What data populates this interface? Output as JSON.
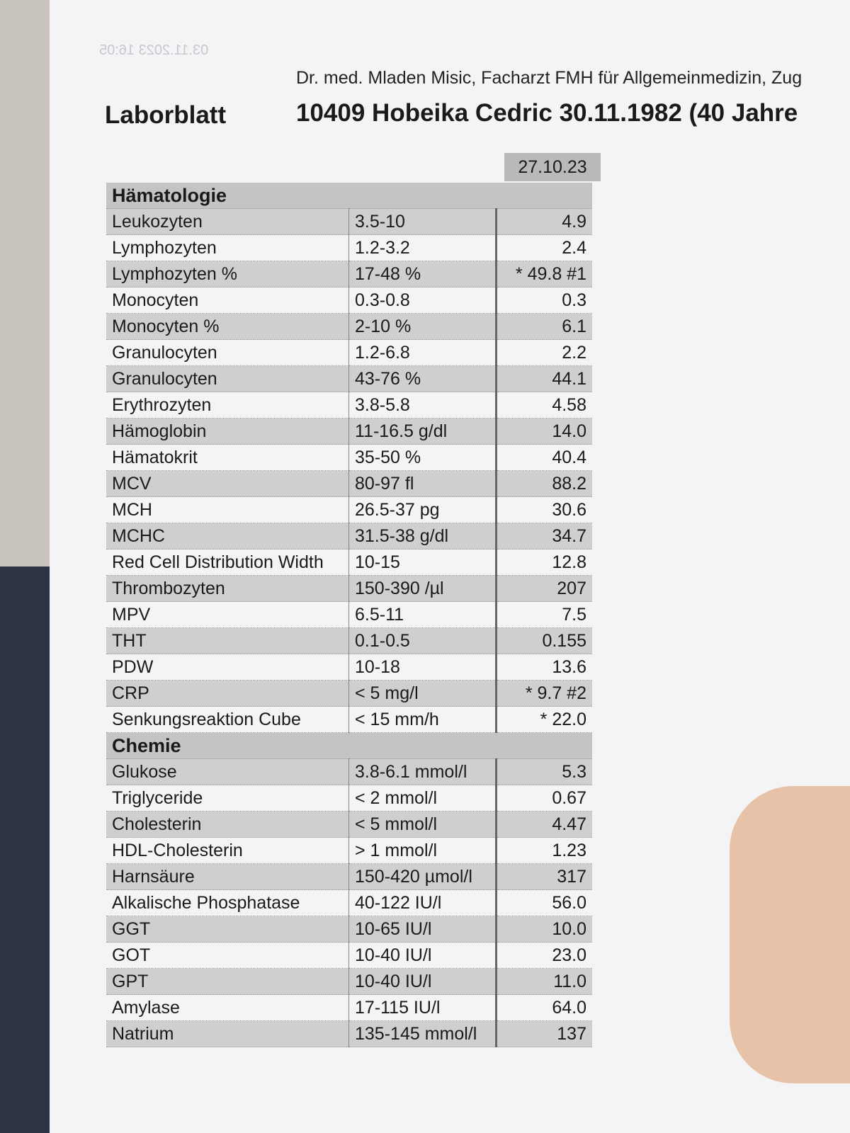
{
  "header": {
    "timestamp": "03.11.2023 16:05",
    "doctor": "Dr. med. Mladen Misic, Facharzt FMH für Allgemeinmedizin, Zug",
    "title": "Laborblatt",
    "patient": "10409 Hobeika Cedric 30.11.1982 (40 Jahre"
  },
  "table": {
    "date": "27.10.23",
    "sections": [
      {
        "title": "Hämatologie",
        "rows": [
          [
            "Leukozyten",
            "3.5-10",
            "4.9"
          ],
          [
            "Lymphozyten",
            "1.2-3.2",
            "2.4"
          ],
          [
            "Lymphozyten %",
            "17-48 %",
            "* 49.8 #1"
          ],
          [
            "Monocyten",
            "0.3-0.8",
            "0.3"
          ],
          [
            "Monocyten %",
            "2-10 %",
            "6.1"
          ],
          [
            "Granulocyten",
            "1.2-6.8",
            "2.2"
          ],
          [
            "Granulocyten",
            "43-76 %",
            "44.1"
          ],
          [
            "Erythrozyten",
            "3.8-5.8",
            "4.58"
          ],
          [
            "Hämoglobin",
            "11-16.5 g/dl",
            "14.0"
          ],
          [
            "Hämatokrit",
            "35-50 %",
            "40.4"
          ],
          [
            "MCV",
            "80-97 fl",
            "88.2"
          ],
          [
            "MCH",
            "26.5-37 pg",
            "30.6"
          ],
          [
            "MCHC",
            "31.5-38 g/dl",
            "34.7"
          ],
          [
            "Red Cell Distribution Width",
            "10-15",
            "12.8"
          ],
          [
            "Thrombozyten",
            "150-390 /µl",
            "207"
          ],
          [
            "MPV",
            "6.5-11",
            "7.5"
          ],
          [
            "THT",
            "0.1-0.5",
            "0.155"
          ],
          [
            "PDW",
            "10-18",
            "13.6"
          ],
          [
            "CRP",
            "< 5 mg/l",
            "* 9.7 #2"
          ],
          [
            "Senkungsreaktion Cube",
            "< 15 mm/h",
            "* 22.0"
          ]
        ]
      },
      {
        "title": "Chemie",
        "rows": [
          [
            "Glukose",
            "3.8-6.1 mmol/l",
            "5.3"
          ],
          [
            "Triglyceride",
            "< 2 mmol/l",
            "0.67"
          ],
          [
            "Cholesterin",
            "< 5 mmol/l",
            "4.47"
          ],
          [
            "HDL-Cholesterin",
            "> 1 mmol/l",
            "1.23"
          ],
          [
            "Harnsäure",
            "150-420 µmol/l",
            "317"
          ],
          [
            "Alkalische Phosphatase",
            "40-122 IU/l",
            "56.0"
          ],
          [
            "GGT",
            "10-65 IU/l",
            "10.0"
          ],
          [
            "GOT",
            "10-40 IU/l",
            "23.0"
          ],
          [
            "GPT",
            "10-40 IU/l",
            "11.0"
          ],
          [
            "Amylase",
            "17-115 IU/l",
            "64.0"
          ],
          [
            "Natrium",
            "135-145 mmol/l",
            "137"
          ]
        ]
      }
    ]
  }
}
